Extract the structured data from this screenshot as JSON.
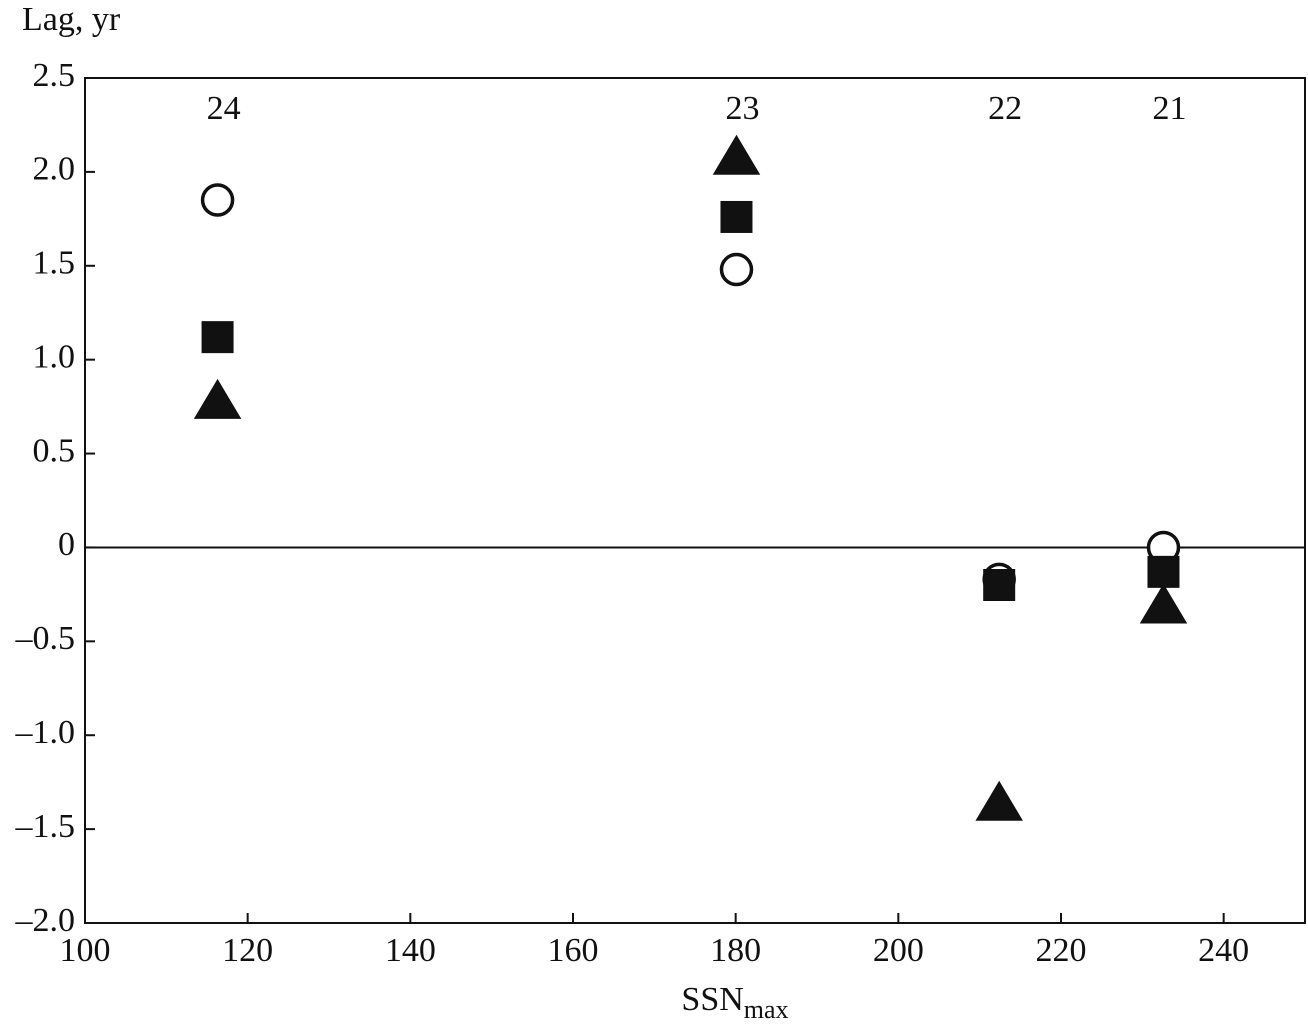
{
  "chart_data": {
    "type": "scatter",
    "y_label": "Lag, yr",
    "x_label": {
      "text": "SSN",
      "subscript": "max"
    },
    "x": [
      116.3,
      180.1,
      212.4,
      232.6
    ],
    "annotations": [
      "24",
      "23",
      "22",
      "21"
    ],
    "series": [
      {
        "marker": "circle",
        "color": "#111111",
        "filled": false,
        "values": [
          1.85,
          1.48,
          -0.17,
          0.0
        ]
      },
      {
        "marker": "square",
        "color": "#111111",
        "filled": true,
        "values": [
          1.12,
          1.76,
          -0.2,
          -0.13
        ]
      },
      {
        "marker": "triangle",
        "color": "#111111",
        "filled": true,
        "values": [
          0.77,
          2.07,
          -1.37,
          -0.32
        ]
      }
    ],
    "xlim": [
      100,
      250
    ],
    "xticks": [
      100,
      120,
      140,
      160,
      180,
      200,
      220,
      240
    ],
    "ylim": [
      -2.0,
      2.5
    ],
    "yticks": [
      2.5,
      {
        "value": 2.0,
        "label": "2.0"
      },
      1.5,
      {
        "value": 1.0,
        "label": "1.0"
      },
      0.5,
      0,
      {
        "value": -0.5,
        "label": "–0.5"
      },
      {
        "value": -1.0,
        "label": "–1.0"
      },
      {
        "value": -1.5,
        "label": "–1.5"
      },
      {
        "value": -2.0,
        "label": "–2.0"
      }
    ],
    "zero_line": true
  }
}
